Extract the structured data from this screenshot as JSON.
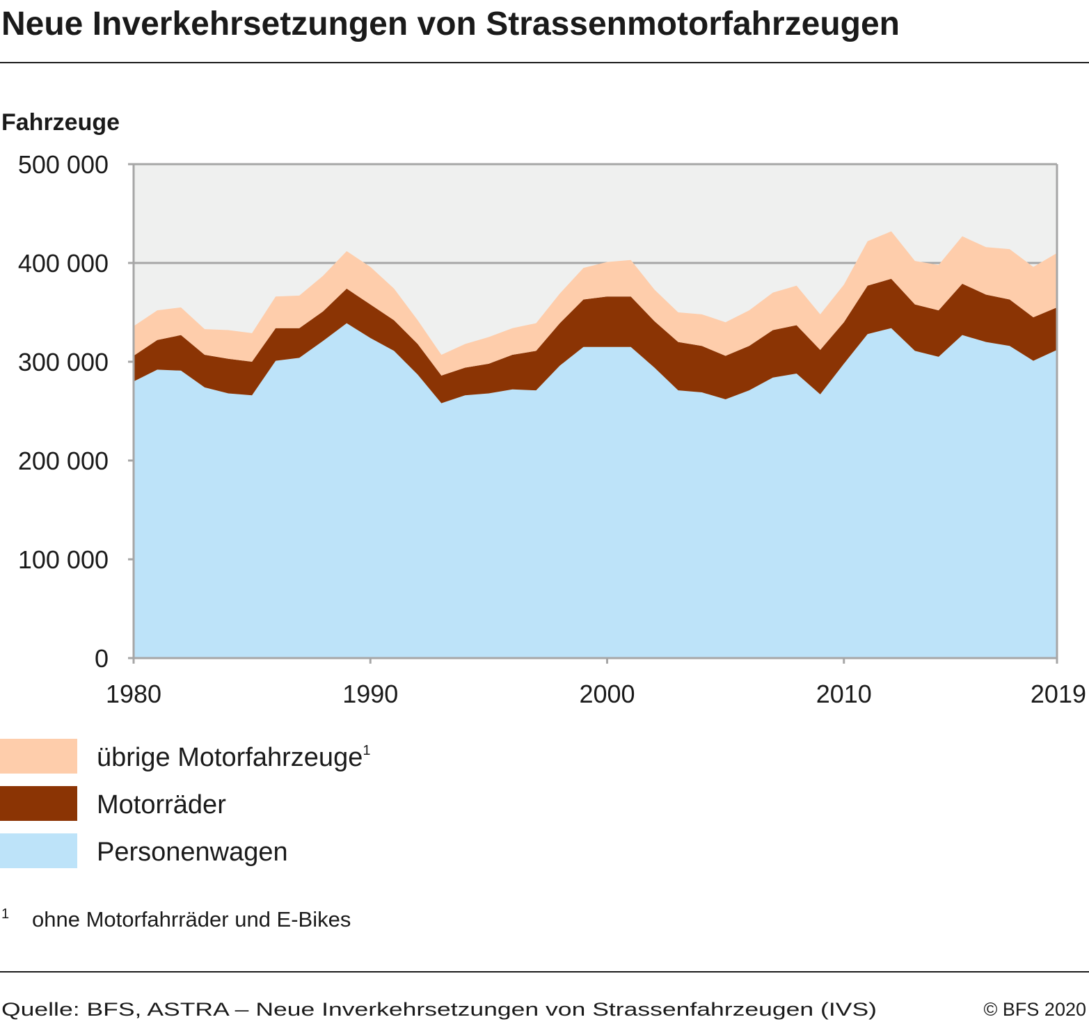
{
  "header": {
    "title": "Neue Inverkehrsetzungen von Strassenmotorfahrzeugen"
  },
  "footnote": {
    "marker": "1",
    "text": "ohne Motorfahrräder und E-Bikes"
  },
  "footer": {
    "source": "Quelle: BFS, ASTRA – Neue Inverkehrsetzungen von Strassenfahrzeugen (IVS)",
    "copyright": "© BFS 2020"
  },
  "colors": {
    "plot_background": "#eff0ef",
    "grid": "#a6a6a6",
    "personenwagen": "#bde3f9",
    "motorraeder": "#8b3404",
    "uebrige": "#fecdab"
  },
  "chart_data": {
    "type": "area",
    "stacked": true,
    "title": "Neue Inverkehrsetzungen von Strassenmotorfahrzeugen",
    "ylabel": "Fahrzeuge",
    "xlabel": "",
    "xlim": [
      1980,
      2019
    ],
    "ylim": [
      0,
      500000
    ],
    "x_ticks": [
      "1980",
      "1990",
      "2000",
      "2010",
      "2019"
    ],
    "y_ticks": [
      "0",
      "100 000",
      "200 000",
      "300 000",
      "400 000",
      "500 000"
    ],
    "grid": true,
    "legend_position": "bottom-left",
    "x": [
      1980,
      1981,
      1982,
      1983,
      1984,
      1985,
      1986,
      1987,
      1988,
      1989,
      1990,
      1991,
      1992,
      1993,
      1994,
      1995,
      1996,
      1997,
      1998,
      1999,
      2000,
      2001,
      2002,
      2003,
      2004,
      2005,
      2006,
      2007,
      2008,
      2009,
      2010,
      2011,
      2012,
      2013,
      2014,
      2015,
      2016,
      2017,
      2018,
      2019
    ],
    "series": [
      {
        "name": "Personenwagen",
        "color": "#bde3f9",
        "values": [
          280000,
          292000,
          291000,
          274000,
          268000,
          266000,
          301000,
          304000,
          321000,
          339000,
          324000,
          311000,
          287000,
          258000,
          266000,
          268000,
          272000,
          271000,
          296000,
          315000,
          315000,
          315000,
          294000,
          271000,
          269000,
          262000,
          271000,
          284000,
          288000,
          267000,
          298000,
          328000,
          334000,
          311000,
          305000,
          327000,
          320000,
          316000,
          301000,
          312000
        ]
      },
      {
        "name": "Motorräder",
        "color": "#8b3404",
        "values": [
          26000,
          30000,
          36000,
          33000,
          35000,
          34000,
          33000,
          30000,
          30000,
          35000,
          34000,
          31000,
          31000,
          28000,
          28000,
          30000,
          35000,
          40000,
          43000,
          48000,
          51000,
          51000,
          47000,
          49000,
          47000,
          44000,
          45000,
          48000,
          49000,
          45000,
          42000,
          49000,
          50000,
          47000,
          47000,
          52000,
          48000,
          47000,
          44000,
          43000
        ]
      },
      {
        "name": "übrige Motorfahrzeuge",
        "footnote_marker": "1",
        "color": "#fecdab",
        "values": [
          30000,
          30000,
          28000,
          26000,
          29000,
          29000,
          32000,
          33000,
          36000,
          38000,
          38000,
          32000,
          24000,
          21000,
          24000,
          27000,
          27000,
          28000,
          30000,
          32000,
          35000,
          37000,
          32000,
          30000,
          32000,
          34000,
          36000,
          38000,
          40000,
          36000,
          38000,
          45000,
          48000,
          44000,
          46000,
          48000,
          48000,
          51000,
          51000,
          55000
        ]
      }
    ]
  }
}
